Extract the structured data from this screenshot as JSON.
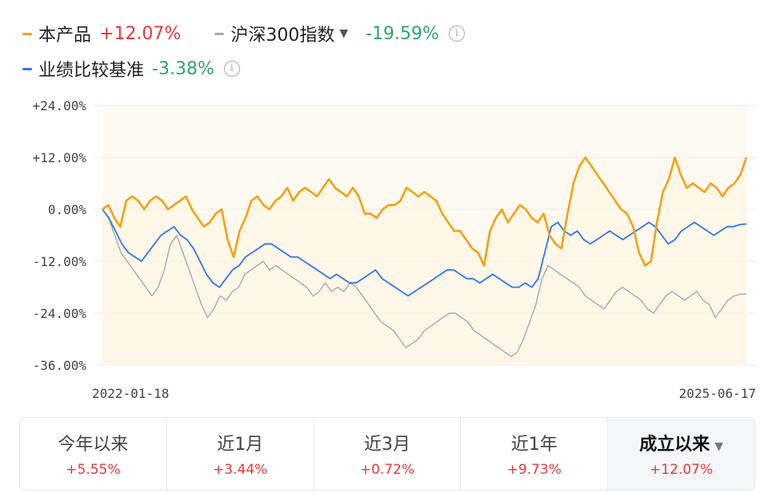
{
  "legend": {
    "product": {
      "name": "本产品",
      "value": "+12.07%",
      "color": "#f5a015",
      "value_color": "#e5383b"
    },
    "index": {
      "name": "沪深300指数",
      "value": "-19.59%",
      "color": "#a8a8b2",
      "value_color": "#2ea56a",
      "caret": "▼",
      "info": "i"
    },
    "benchmark": {
      "name": "业绩比较基准",
      "value": "-3.38%",
      "color": "#2f75ee",
      "value_color": "#2ea56a",
      "info": "i"
    }
  },
  "chart_data": {
    "type": "line",
    "x_start_label": "2022-01-18",
    "x_end_label": "2025-06-17",
    "ylim": [
      -36,
      24
    ],
    "yticks": [
      "+24.00%",
      "+12.00%",
      "0.00%",
      "-12.00%",
      "-24.00%",
      "-36.00%"
    ],
    "ytick_values": [
      24,
      12,
      0,
      -12,
      -24,
      -36
    ],
    "series": [
      {
        "name": "本产品",
        "color": "#f5a015",
        "values": [
          0,
          1,
          -2,
          -4,
          2,
          3,
          2,
          0,
          2,
          3,
          2,
          0,
          1,
          2,
          3,
          0,
          -2,
          -4,
          -3,
          -1,
          0,
          -7,
          -11,
          -5,
          -2,
          2,
          3,
          1,
          0,
          2,
          3,
          5,
          2,
          4,
          5,
          4,
          3,
          5,
          7,
          5,
          4,
          3,
          5,
          3,
          -1,
          -1,
          -2,
          0,
          1,
          1,
          2,
          5,
          4,
          3,
          4,
          3,
          2,
          -1,
          -3,
          -5,
          -5,
          -7,
          -9,
          -10,
          -13,
          -5,
          -2,
          0,
          -3,
          -1,
          1,
          0,
          -2,
          -3,
          -1,
          -6,
          -8,
          -9,
          -1,
          6,
          10,
          12,
          10,
          8,
          6,
          4,
          2,
          0,
          -1,
          -4,
          -10,
          -13,
          -12,
          -3,
          4,
          7,
          12,
          8,
          5,
          6,
          5,
          4,
          6,
          5,
          3,
          5,
          6,
          8,
          12
        ]
      },
      {
        "name": "沪深300指数",
        "color": "#a8a8b2",
        "values": [
          0,
          -2,
          -6,
          -10,
          -12,
          -14,
          -16,
          -18,
          -20,
          -18,
          -14,
          -8,
          -6,
          -10,
          -14,
          -18,
          -22,
          -25,
          -23,
          -20,
          -21,
          -19,
          -18,
          -15,
          -14,
          -13,
          -12,
          -14,
          -13,
          -14,
          -15,
          -16,
          -17,
          -18,
          -20,
          -19,
          -17,
          -19,
          -18,
          -19,
          -17,
          -18,
          -20,
          -22,
          -24,
          -26,
          -27,
          -28,
          -30,
          -32,
          -31,
          -30,
          -28,
          -27,
          -26,
          -25,
          -24,
          -24,
          -25,
          -26,
          -28,
          -29,
          -30,
          -31,
          -32,
          -33,
          -34,
          -33,
          -30,
          -26,
          -22,
          -16,
          -13,
          -14,
          -15,
          -16,
          -17,
          -18,
          -20,
          -21,
          -22,
          -23,
          -21,
          -19,
          -18,
          -19,
          -20,
          -21,
          -23,
          -24,
          -22,
          -20,
          -19,
          -20,
          -21,
          -20,
          -19,
          -21,
          -22,
          -25,
          -23,
          -21,
          -20,
          -19.6,
          -19.59
        ]
      },
      {
        "name": "业绩比较基准",
        "color": "#2f75ee",
        "values": [
          0,
          -2,
          -5,
          -8,
          -10,
          -11,
          -12,
          -10,
          -8,
          -6,
          -5,
          -4,
          -6,
          -7,
          -9,
          -12,
          -15,
          -17,
          -18,
          -16,
          -14,
          -13,
          -11,
          -10,
          -9,
          -8,
          -8,
          -9,
          -10,
          -11,
          -11,
          -12,
          -13,
          -14,
          -15,
          -16,
          -15,
          -16,
          -17,
          -17,
          -16,
          -15,
          -14,
          -16,
          -17,
          -18,
          -19,
          -20,
          -19,
          -18,
          -17,
          -16,
          -15,
          -14,
          -14,
          -15,
          -16,
          -16,
          -17,
          -16,
          -15,
          -16,
          -17,
          -18,
          -18,
          -17,
          -18,
          -16,
          -10,
          -4,
          -3,
          -5,
          -6,
          -5,
          -7,
          -8,
          -7,
          -6,
          -5,
          -6,
          -7,
          -6,
          -5,
          -4,
          -3,
          -4,
          -6,
          -8,
          -7,
          -5,
          -4,
          -3,
          -4,
          -5,
          -6,
          -5,
          -4,
          -4,
          -3.5,
          -3.38
        ]
      }
    ]
  },
  "periods": [
    {
      "label": "今年以来",
      "value": "+5.55%",
      "active": false
    },
    {
      "label": "近1月",
      "value": "+3.44%",
      "active": false
    },
    {
      "label": "近3月",
      "value": "+0.72%",
      "active": false
    },
    {
      "label": "近1年",
      "value": "+9.73%",
      "active": false
    },
    {
      "label": "成立以来",
      "value": "+12.07%",
      "active": true,
      "caret": "▼"
    }
  ]
}
